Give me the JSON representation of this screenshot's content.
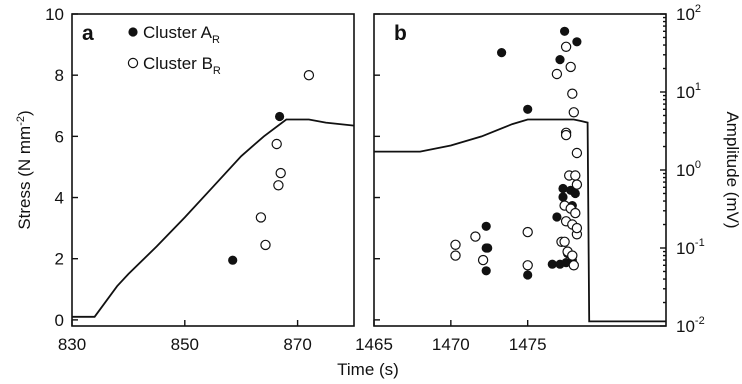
{
  "chart_data": [
    {
      "panel": "a",
      "type": "scatter",
      "x_axis": {
        "range": [
          830,
          880
        ],
        "ticks": [
          830,
          850,
          870
        ]
      },
      "y_axis": {
        "range": [
          -0.2,
          10
        ],
        "ticks": [
          0,
          2,
          4,
          6,
          8,
          10
        ]
      },
      "legend": {
        "placement": "top-center",
        "entries": [
          {
            "label": "Cluster A",
            "subscript": "R",
            "marker": "filled-circle"
          },
          {
            "label": "Cluster B",
            "subscript": "R",
            "marker": "open-circle"
          }
        ]
      },
      "series": [
        {
          "type": "line",
          "points": [
            [
              830,
              0.1
            ],
            [
              834,
              0.1
            ],
            [
              838,
              1.1
            ],
            [
              840,
              1.5
            ],
            [
              845,
              2.4
            ],
            [
              850,
              3.35
            ],
            [
              855,
              4.35
            ],
            [
              860,
              5.35
            ],
            [
              864,
              6.0
            ],
            [
              868,
              6.55
            ],
            [
              872,
              6.55
            ],
            [
              875,
              6.45
            ],
            [
              880,
              6.35
            ]
          ]
        },
        {
          "name": "Cluster AR",
          "type": "scatter",
          "points": [
            [
              858.5,
              1.95
            ],
            [
              866.8,
              6.65
            ]
          ]
        },
        {
          "name": "Cluster BR",
          "type": "scatter",
          "points": [
            [
              863.5,
              3.35
            ],
            [
              864.3,
              2.45
            ],
            [
              866.6,
              4.4
            ],
            [
              866.3,
              5.75
            ],
            [
              867.0,
              4.8
            ],
            [
              872.0,
              8.0
            ]
          ]
        }
      ]
    },
    {
      "panel": "b",
      "type": "scatter",
      "x_axis": {
        "range": [
          1465,
          1484
        ],
        "ticks": [
          1465,
          1470,
          1475
        ]
      },
      "y_axis_left": {
        "range": [
          -0.2,
          10
        ],
        "ticks": [
          0,
          2,
          4,
          6,
          8,
          10
        ]
      },
      "y_axis_right": {
        "scale": "log",
        "range": [
          0.01,
          100
        ],
        "ticks": [
          0.01,
          0.1,
          1,
          10,
          100
        ]
      },
      "series": [
        {
          "type": "line",
          "points": [
            [
              1465,
              5.5
            ],
            [
              1468,
              5.5
            ],
            [
              1470,
              5.7
            ],
            [
              1472,
              6.0
            ],
            [
              1474,
              6.4
            ],
            [
              1475,
              6.55
            ],
            [
              1478,
              6.55
            ],
            [
              1478.5,
              6.5
            ],
            [
              1478.9,
              6.45
            ],
            [
              1479.0,
              -0.05
            ],
            [
              1484,
              -0.05
            ]
          ]
        },
        {
          "name": "Cluster AR",
          "type": "scatter",
          "points": [
            [
              1472.3,
              0.19
            ],
            [
              1472.3,
              0.1
            ],
            [
              1472.4,
              0.1
            ],
            [
              1472.3,
              0.051
            ],
            [
              1473.3,
              32
            ],
            [
              1475.0,
              6.0
            ],
            [
              1475.0,
              0.045
            ],
            [
              1476.6,
              0.062
            ],
            [
              1477.1,
              26
            ],
            [
              1476.9,
              0.25
            ],
            [
              1477.1,
              0.062
            ],
            [
              1477.3,
              0.45
            ],
            [
              1477.4,
              60
            ],
            [
              1477.5,
              0.065
            ],
            [
              1477.8,
              0.55
            ],
            [
              1477.9,
              0.07
            ],
            [
              1477.6,
              0.085
            ],
            [
              1477.9,
              0.35
            ],
            [
              1477.3,
              0.58
            ],
            [
              1478.2,
              44
            ],
            [
              1478.1,
              0.5
            ]
          ]
        },
        {
          "name": "Cluster BR",
          "type": "scatter",
          "points": [
            [
              1470.3,
              0.08
            ],
            [
              1470.3,
              0.11
            ],
            [
              1471.6,
              0.14
            ],
            [
              1472.1,
              0.07
            ],
            [
              1475.0,
              0.16
            ],
            [
              1475.0,
              0.06
            ],
            [
              1476.9,
              17
            ],
            [
              1477.2,
              0.12
            ],
            [
              1477.5,
              38
            ],
            [
              1477.8,
              21
            ],
            [
              1477.9,
              9.5
            ],
            [
              1478.0,
              5.5
            ],
            [
              1477.5,
              3.0
            ],
            [
              1477.5,
              2.8
            ],
            [
              1478.2,
              1.65
            ],
            [
              1477.7,
              0.85
            ],
            [
              1478.1,
              0.85
            ],
            [
              1478.2,
              0.65
            ],
            [
              1477.4,
              0.35
            ],
            [
              1477.8,
              0.32
            ],
            [
              1478.1,
              0.28
            ],
            [
              1477.5,
              0.22
            ],
            [
              1477.9,
              0.2
            ],
            [
              1478.2,
              0.15
            ],
            [
              1478.2,
              0.18
            ],
            [
              1477.4,
              0.12
            ],
            [
              1477.6,
              0.09
            ],
            [
              1477.9,
              0.08
            ],
            [
              1478.0,
              0.06
            ]
          ]
        }
      ]
    }
  ],
  "axes": {
    "x_title": "Time (s)",
    "y_left_title_main": "Stress (N mm",
    "y_left_title_sup": "-2",
    "y_left_title_end": ")",
    "y_right_title": "Amplitude (mV)",
    "right_tick_labels": [
      {
        "base": "10",
        "exp": "2"
      },
      {
        "base": "10",
        "exp": "1"
      },
      {
        "base": "10",
        "exp": "0"
      },
      {
        "base": "10",
        "exp": "-1"
      },
      {
        "base": "10",
        "exp": "-2"
      }
    ]
  },
  "x_tick_labels_a": [
    "830",
    "850",
    "870"
  ],
  "x_tick_labels_b": [
    "1465",
    "1470",
    "1475"
  ],
  "y_tick_labels": [
    "0",
    "2",
    "4",
    "6",
    "8",
    "10"
  ]
}
